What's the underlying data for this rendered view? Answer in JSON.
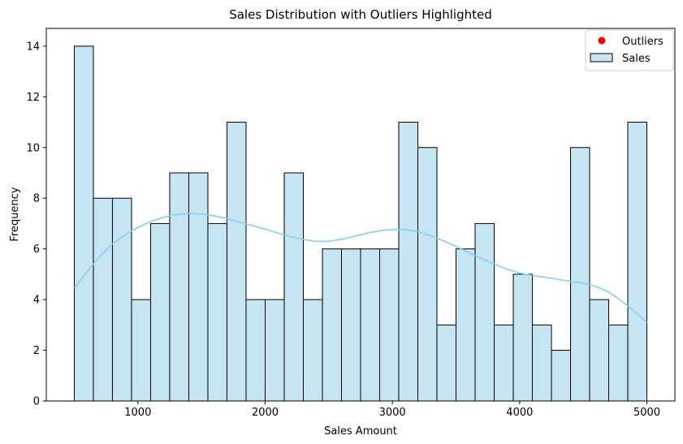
{
  "chart_data": {
    "type": "bar",
    "title": "Sales Distribution with Outliers Highlighted",
    "xlabel": "Sales Amount",
    "ylabel": "Frequency",
    "xlim": [
      280,
      5220
    ],
    "ylim": [
      0,
      14.7
    ],
    "xticks": [
      1000,
      2000,
      3000,
      4000,
      5000
    ],
    "yticks": [
      0,
      2,
      4,
      6,
      8,
      10,
      12,
      14
    ],
    "bins": {
      "start": 500,
      "end": 5000,
      "counts": [
        14,
        8,
        8,
        4,
        7,
        9,
        9,
        7,
        11,
        4,
        4,
        9,
        4,
        6,
        6,
        6,
        6,
        11,
        10,
        3,
        6,
        7,
        3,
        5,
        3,
        2,
        10,
        4,
        3,
        11
      ]
    },
    "kde": {
      "x": [
        500,
        600,
        700,
        800,
        900,
        1000,
        1100,
        1200,
        1300,
        1400,
        1500,
        1600,
        1700,
        1800,
        1900,
        2000,
        2100,
        2200,
        2300,
        2400,
        2500,
        2600,
        2700,
        2800,
        2900,
        3000,
        3100,
        3200,
        3300,
        3400,
        3500,
        3600,
        3700,
        3800,
        3900,
        4000,
        4100,
        4200,
        4300,
        4400,
        4500,
        4600,
        4700,
        4800,
        4900,
        5000
      ],
      "y": [
        4.45,
        5.1,
        5.7,
        6.2,
        6.55,
        6.85,
        7.08,
        7.25,
        7.35,
        7.4,
        7.38,
        7.3,
        7.2,
        7.05,
        6.92,
        6.78,
        6.62,
        6.48,
        6.37,
        6.3,
        6.3,
        6.38,
        6.5,
        6.62,
        6.72,
        6.77,
        6.76,
        6.68,
        6.52,
        6.32,
        6.1,
        5.85,
        5.62,
        5.4,
        5.2,
        5.05,
        4.95,
        4.88,
        4.8,
        4.72,
        4.65,
        4.52,
        4.3,
        3.95,
        3.55,
        3.1
      ]
    },
    "legend": {
      "position": "upper right",
      "items": [
        {
          "label": "Outliers",
          "marker": "point",
          "color": "#ff0000"
        },
        {
          "label": "Sales",
          "marker": "patch",
          "color": "#c5e5f3"
        }
      ]
    },
    "colors": {
      "bar_fill": "#c5e5f3",
      "bar_edge": "#000000",
      "kde_line": "#87ceeb",
      "outlier": "#ff0000"
    },
    "grid": false
  }
}
